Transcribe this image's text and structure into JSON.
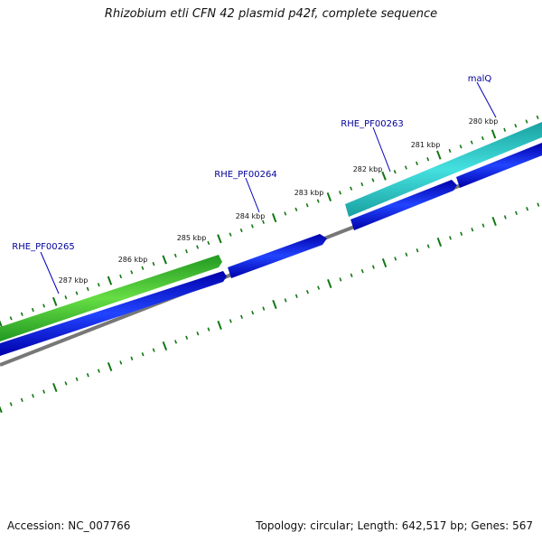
{
  "title": "Rhizobium etli CFN 42 plasmid p42f, complete sequence",
  "footer": {
    "accession": "Accession: NC_007766",
    "stats": "Topology: circular; Length: 642,517 bp; Genes: 567"
  },
  "ticks": [
    {
      "label": "280 kbp",
      "value": 280
    },
    {
      "label": "281 kbp",
      "value": 281
    },
    {
      "label": "282 kbp",
      "value": 282
    },
    {
      "label": "283 kbp",
      "value": 283
    },
    {
      "label": "284 kbp",
      "value": 284
    },
    {
      "label": "285 kbp",
      "value": 285
    },
    {
      "label": "286 kbp",
      "value": 286
    },
    {
      "label": "287 kbp",
      "value": 287
    }
  ],
  "genes": [
    {
      "name": "malQ",
      "color": "#22c8c8"
    },
    {
      "name": "RHE_PF00263",
      "color": "#0000e0"
    },
    {
      "name": "RHE_PF00264",
      "color": "#0000e0"
    },
    {
      "name": "RHE_PF00265",
      "color": "#33bb33"
    }
  ],
  "colors": {
    "backbone": "#777777",
    "tick": "#117711",
    "label": "#000099",
    "cds": "#0000e0",
    "rrna_teal": "#22c8c8",
    "gene_green": "#33bb33"
  }
}
